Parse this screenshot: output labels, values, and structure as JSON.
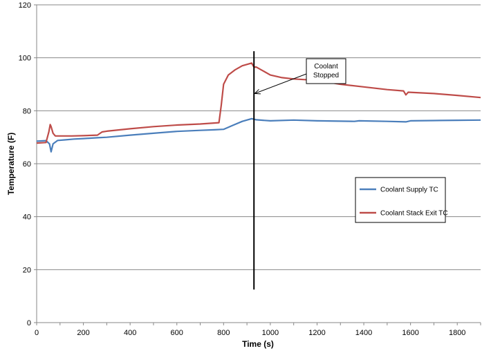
{
  "chart_data": {
    "type": "line",
    "title": "",
    "xlabel": "Time (s)",
    "ylabel": "Temperature (F)",
    "xlim": [
      0,
      1900
    ],
    "ylim": [
      0,
      120
    ],
    "xticks": [
      0,
      200,
      400,
      600,
      800,
      1000,
      1200,
      1400,
      1600,
      1800
    ],
    "yticks": [
      0,
      20,
      40,
      60,
      80,
      100,
      120
    ],
    "grid": "horizontal",
    "legend_position": "right",
    "series": [
      {
        "name": "Coolant Supply TC",
        "color": "#4a7ebb",
        "x": [
          0,
          40,
          55,
          62,
          70,
          90,
          120,
          160,
          200,
          260,
          300,
          400,
          500,
          600,
          700,
          760,
          800,
          840,
          880,
          920,
          940,
          1000,
          1100,
          1200,
          1360,
          1380,
          1500,
          1580,
          1600,
          1700,
          1800,
          1900
        ],
        "y": [
          68.5,
          68.7,
          67.5,
          64.5,
          67.5,
          68.8,
          69.0,
          69.3,
          69.5,
          69.8,
          70.0,
          70.8,
          71.5,
          72.2,
          72.6,
          72.8,
          73.0,
          74.5,
          76.0,
          77.0,
          76.6,
          76.2,
          76.5,
          76.2,
          76.0,
          76.2,
          76.0,
          75.8,
          76.2,
          76.3,
          76.4,
          76.5
        ]
      },
      {
        "name": "Coolant Stack Exit TC",
        "color": "#be4b48",
        "x": [
          0,
          40,
          52,
          58,
          62,
          70,
          80,
          100,
          150,
          200,
          260,
          280,
          300,
          400,
          500,
          600,
          700,
          780,
          790,
          800,
          820,
          850,
          880,
          920,
          930,
          940,
          960,
          1000,
          1050,
          1100,
          1200,
          1300,
          1400,
          1500,
          1570,
          1580,
          1590,
          1700,
          1800,
          1900
        ],
        "y": [
          67.8,
          68.0,
          72.0,
          74.8,
          74.0,
          71.5,
          70.5,
          70.5,
          70.5,
          70.6,
          70.8,
          72.0,
          72.3,
          73.2,
          74.0,
          74.6,
          75.0,
          75.5,
          82.0,
          90.0,
          93.5,
          95.5,
          97.0,
          98.0,
          96.5,
          96.5,
          95.5,
          93.5,
          92.5,
          92.0,
          91.5,
          90.0,
          89.0,
          88.0,
          87.5,
          86.0,
          87.0,
          86.5,
          85.8,
          85.0
        ]
      }
    ],
    "marker_line": {
      "x": 930,
      "y_from": 12.5,
      "y_to": 102.5
    },
    "annotation": {
      "lines": [
        "Coolant",
        "Stopped"
      ],
      "arrow_to_x": 930,
      "arrow_to_y": 86.5
    }
  }
}
